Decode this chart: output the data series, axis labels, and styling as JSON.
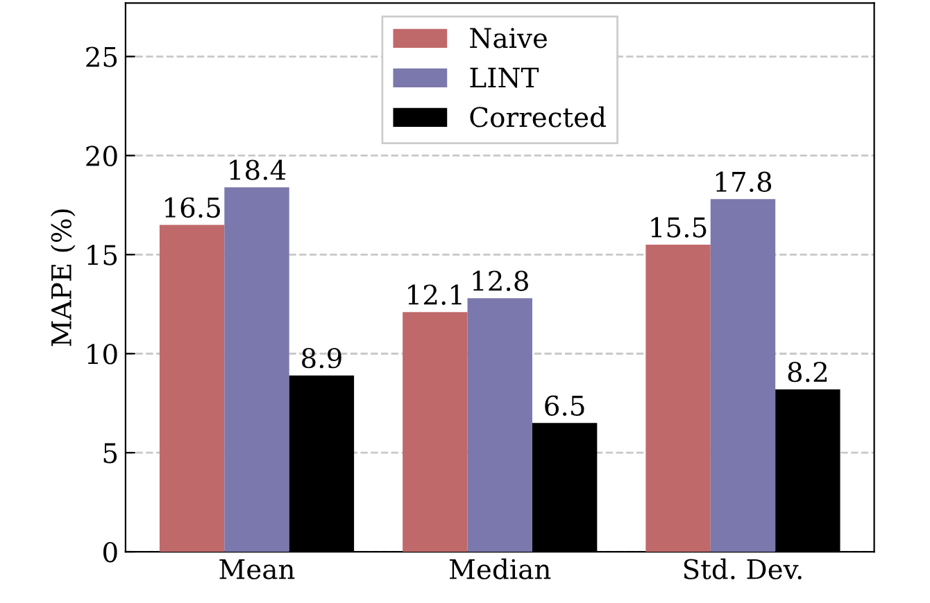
{
  "chart_data": {
    "type": "bar",
    "ylabel": "MAPE (%)",
    "categories": [
      "Mean",
      "Median",
      "Std. Dev."
    ],
    "series": [
      {
        "name": "Naive",
        "color": "#c0696a",
        "values": [
          16.5,
          12.1,
          15.5
        ]
      },
      {
        "name": "LINT",
        "color": "#7b78ad",
        "values": [
          18.4,
          12.8,
          17.8
        ]
      },
      {
        "name": "Corrected",
        "color": "#000000",
        "values": [
          8.9,
          6.5,
          8.2
        ]
      }
    ],
    "ylim": [
      0,
      27.7
    ],
    "yticks": [
      0,
      5,
      10,
      15,
      20,
      25
    ],
    "grid": "y",
    "legend": "top",
    "data_labels": true
  }
}
